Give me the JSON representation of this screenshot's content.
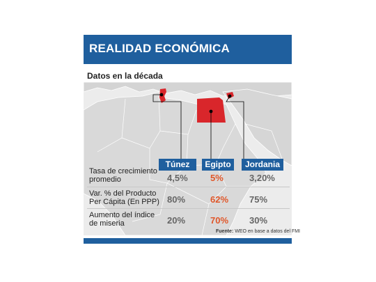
{
  "header": {
    "title": "REALIDAD ECONÓMICA"
  },
  "subtitle": "Datos en la década",
  "columns": [
    "Túnez",
    "Egipto",
    "Jordania"
  ],
  "rows": [
    {
      "label_line1": "Tasa de crecimiento",
      "label_line2": "promedio",
      "values": [
        "4,5%",
        "5%",
        "3,20%"
      ]
    },
    {
      "label_line1": "Var. % del Producto",
      "label_line2": "Per Cápita (En PPP)",
      "values": [
        "80%",
        "62%",
        "75%"
      ]
    },
    {
      "label_line1": "Aumento del índice",
      "label_line2": "de miseria",
      "values": [
        "20%",
        "70%",
        "30%"
      ]
    }
  ],
  "source": {
    "label": "Fuente:",
    "text": "WEO en base a datos del FMI"
  },
  "colors": {
    "header": "#1f5f9e",
    "highlight": "#e0572a",
    "highlight_country": "#d9262b",
    "land": "#d9d9d9"
  }
}
